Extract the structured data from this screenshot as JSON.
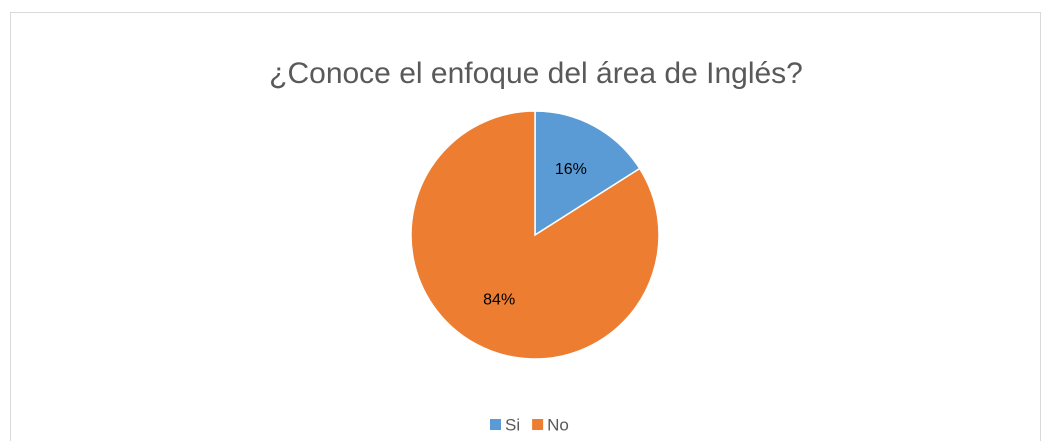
{
  "chart_data": {
    "type": "pie",
    "title": "¿Conoce el enfoque del área de Inglés?",
    "categories": [
      "Si",
      "No"
    ],
    "values": [
      16,
      84
    ],
    "value_labels": [
      "16%",
      "84%"
    ],
    "colors": [
      "#5b9bd5",
      "#ed7d31"
    ],
    "legend": "bottom"
  }
}
